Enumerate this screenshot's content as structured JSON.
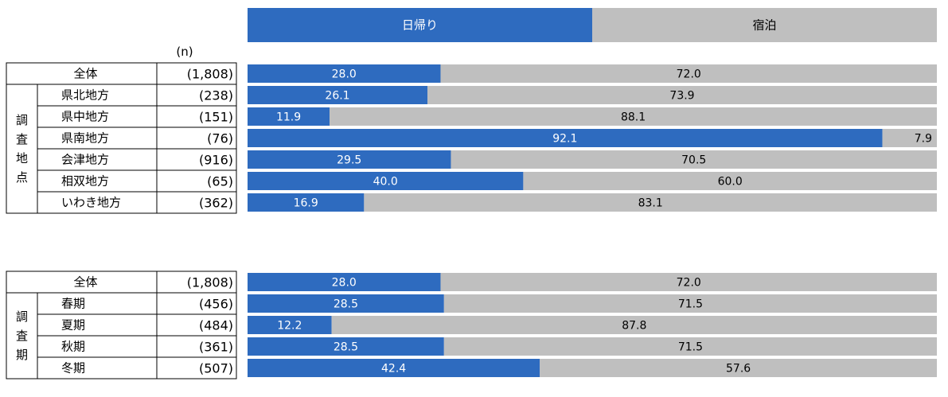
{
  "chart_data": {
    "type": "bar",
    "stacked": true,
    "orientation": "horizontal",
    "legend": {
      "placement": "top",
      "items": [
        {
          "label": "日帰り",
          "color": "#2e6bbf"
        },
        {
          "label": "宿泊",
          "color": "#bfbfbf"
        }
      ]
    },
    "n_header": "(n)",
    "xlim": [
      0,
      100
    ],
    "sections": [
      {
        "group_label": "調査地点",
        "total": {
          "label": "全体",
          "n": "(1,808)",
          "values": [
            28.0,
            72.0
          ]
        },
        "rows": [
          {
            "label": "県北地方",
            "n": "(238)",
            "values": [
              26.1,
              73.9
            ]
          },
          {
            "label": "県中地方",
            "n": "(151)",
            "values": [
              11.9,
              88.1
            ]
          },
          {
            "label": "県南地方",
            "n": "(76)",
            "values": [
              92.1,
              7.9
            ]
          },
          {
            "label": "会津地方",
            "n": "(916)",
            "values": [
              29.5,
              70.5
            ]
          },
          {
            "label": "相双地方",
            "n": "(65)",
            "values": [
              40.0,
              60.0
            ]
          },
          {
            "label": "いわき地方",
            "n": "(362)",
            "values": [
              16.9,
              83.1
            ]
          }
        ]
      },
      {
        "group_label": "調査期",
        "total": {
          "label": "全体",
          "n": "(1,808)",
          "values": [
            28.0,
            72.0
          ]
        },
        "rows": [
          {
            "label": "春期",
            "n": "(456)",
            "values": [
              28.5,
              71.5
            ]
          },
          {
            "label": "夏期",
            "n": "(484)",
            "values": [
              12.2,
              87.8
            ]
          },
          {
            "label": "秋期",
            "n": "(361)",
            "values": [
              28.5,
              71.5
            ]
          },
          {
            "label": "冬期",
            "n": "(507)",
            "values": [
              42.4,
              57.6
            ]
          }
        ]
      }
    ]
  }
}
